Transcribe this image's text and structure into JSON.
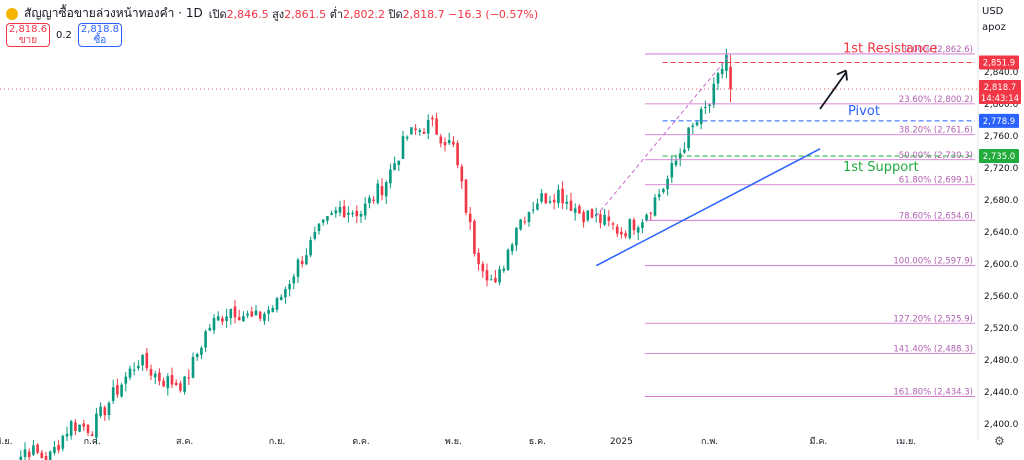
{
  "header": {
    "symbol_title": "สัญญาซื้อขายล่วงหน้าทองคำ · 1D",
    "open_label": "เปิด",
    "open": "2,846.5",
    "high_label": "สูง",
    "high": "2,861.5",
    "low_label": "ต่ำ",
    "low": "2,802.2",
    "close_label": "ปิด",
    "close": "2,818.7",
    "change": "−16.3 (−0.57%)"
  },
  "quote": {
    "sell_price": "2,818.6",
    "sell_label": "ขาย",
    "spread": "0.2",
    "buy_price": "2,818.8",
    "buy_label": "ซื้อ"
  },
  "currency": {
    "unit": "USD",
    "scale": "apoz"
  },
  "colors": {
    "up": "#089981",
    "down": "#f23645",
    "fib": "#cc66cc",
    "trend": "#2962ff",
    "resistance": "#f23645",
    "support": "#22ab3d"
  },
  "chart_data": {
    "type": "candlestick",
    "ylim": [
      2390,
      2880
    ],
    "yticks": [
      2400,
      2440,
      2480,
      2520,
      2560,
      2600,
      2640,
      2680,
      2720,
      2760,
      2800,
      2840
    ],
    "ytick_labels": [
      "2,400.0",
      "2,440.0",
      "2,480.0",
      "2,520.0",
      "2,560.0",
      "2,600.0",
      "2,640.0",
      "2,680.0",
      "2,720.0",
      "2,760.0",
      "2,800.0",
      "2,840.0"
    ],
    "x_labels": [
      "มิ.ย.",
      "ก.ค.",
      "ส.ค.",
      "ก.ย.",
      "ต.ค.",
      "พ.ย.",
      "ธ.ค.",
      "2025",
      "ก.พ.",
      "มี.ค.",
      "เม.ย."
    ],
    "bars_per_month": [
      21,
      22,
      22,
      20,
      22,
      20,
      20,
      21,
      6
    ],
    "monthly_path": [
      [
        2330,
        2370,
        2355,
        2400,
        2395
      ],
      [
        2395,
        2440,
        2480,
        2455,
        2450
      ],
      [
        2450,
        2520,
        2545,
        2530,
        2550
      ],
      [
        2550,
        2600,
        2640,
        2670,
        2665
      ],
      [
        2665,
        2700,
        2760,
        2775,
        2745
      ],
      [
        2745,
        2620,
        2570,
        2650,
        2680
      ],
      [
        2680,
        2690,
        2665,
        2655,
        2640
      ],
      [
        2640,
        2660,
        2700,
        2760,
        2800
      ],
      [
        2800,
        2830,
        2861.5,
        2818.7
      ]
    ],
    "last_candle": {
      "open": 2846.5,
      "high": 2861.5,
      "low": 2802.2,
      "close": 2818.7
    },
    "fib_levels": [
      {
        "label": "0.00% (2,862.6)",
        "value": 2862.6
      },
      {
        "label": "23.60% (2,800.2)",
        "value": 2800.2
      },
      {
        "label": "38.20% (2,761.6)",
        "value": 2761.6
      },
      {
        "label": "50.00% (2,730.3)",
        "value": 2730.3
      },
      {
        "label": "61.80% (2,699.1)",
        "value": 2699.1
      },
      {
        "label": "78.60% (2,654.6)",
        "value": 2654.6
      },
      {
        "label": "100.00% (2,597.9)",
        "value": 2597.9
      },
      {
        "label": "127.20% (2,525.9)",
        "value": 2525.9
      },
      {
        "label": "141.40% (2,488.3)",
        "value": 2488.3
      },
      {
        "label": "161.80% (2,434.3)",
        "value": 2434.3
      }
    ],
    "annotations": {
      "resistance": {
        "label": "1st Resistance",
        "price": 2851.9,
        "tag": "2,851.9"
      },
      "pivot": {
        "label": "Pivot",
        "price": 2778.9,
        "tag": "2,778.9"
      },
      "support": {
        "label": "1st Support",
        "price": 2735.0,
        "tag": "2,735.0"
      },
      "last_price": {
        "tag": "2,818.7",
        "countdown": "14:43:14"
      }
    }
  }
}
